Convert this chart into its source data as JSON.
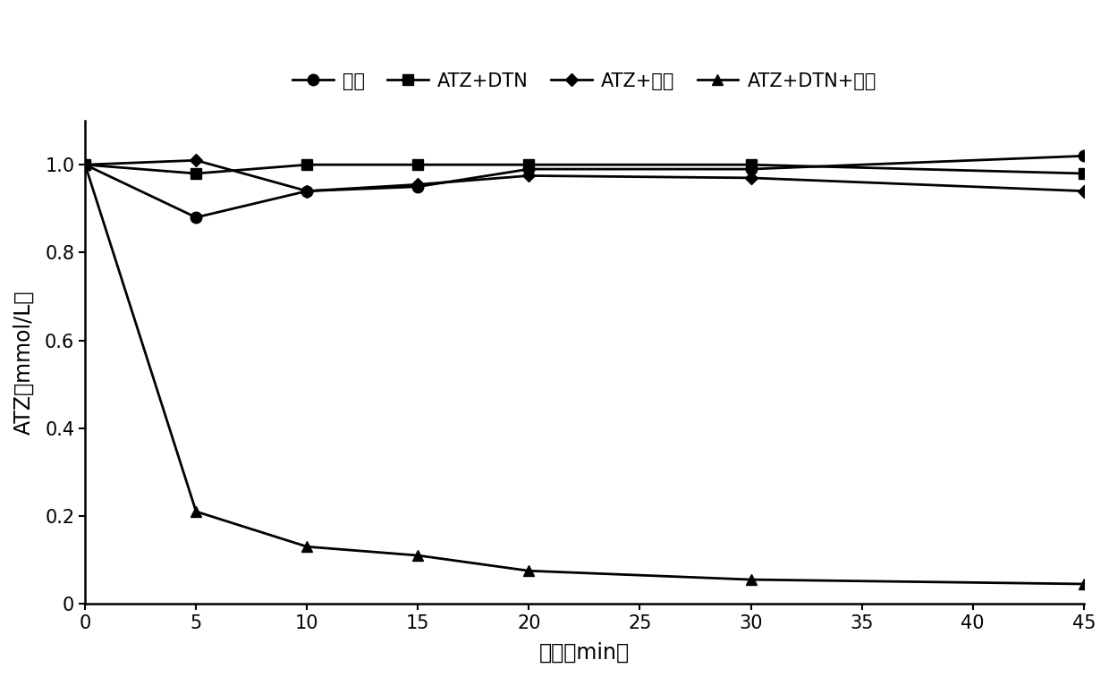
{
  "x": [
    0,
    5,
    10,
    15,
    20,
    30,
    45
  ],
  "series": [
    {
      "label": "空白",
      "y": [
        1.0,
        0.88,
        0.94,
        0.95,
        0.99,
        0.99,
        1.02
      ],
      "marker": "o",
      "color": "#000000",
      "linestyle": "-",
      "markersize": 9,
      "linewidth": 2.0
    },
    {
      "label": "ATZ+DTN",
      "y": [
        1.0,
        0.98,
        1.0,
        1.0,
        1.0,
        1.0,
        0.98
      ],
      "marker": "s",
      "color": "#000000",
      "linestyle": "-",
      "markersize": 9,
      "linewidth": 2.0
    },
    {
      "label": "ATZ+亚鐵",
      "y": [
        1.0,
        1.01,
        0.94,
        0.955,
        0.975,
        0.97,
        0.94
      ],
      "marker": "D",
      "color": "#000000",
      "linestyle": "-",
      "markersize": 7,
      "linewidth": 2.0
    },
    {
      "label": "ATZ+DTN+亚鐵",
      "y": [
        1.0,
        0.21,
        0.13,
        0.11,
        0.075,
        0.055,
        0.045
      ],
      "marker": "^",
      "color": "#000000",
      "linestyle": "-",
      "markersize": 9,
      "linewidth": 2.0
    }
  ],
  "xlabel": "时间（min）",
  "ylabel": "ATZ（mmol/L）",
  "xlim": [
    0,
    45
  ],
  "ylim": [
    0,
    1.1
  ],
  "xticks": [
    0,
    5,
    10,
    15,
    20,
    25,
    30,
    35,
    40,
    45
  ],
  "yticks": [
    0,
    0.2,
    0.4,
    0.6,
    0.8,
    1.0
  ],
  "legend_ncol": 4,
  "background_color": "#ffffff",
  "figsize": [
    12.4,
    7.57
  ],
  "dpi": 100
}
